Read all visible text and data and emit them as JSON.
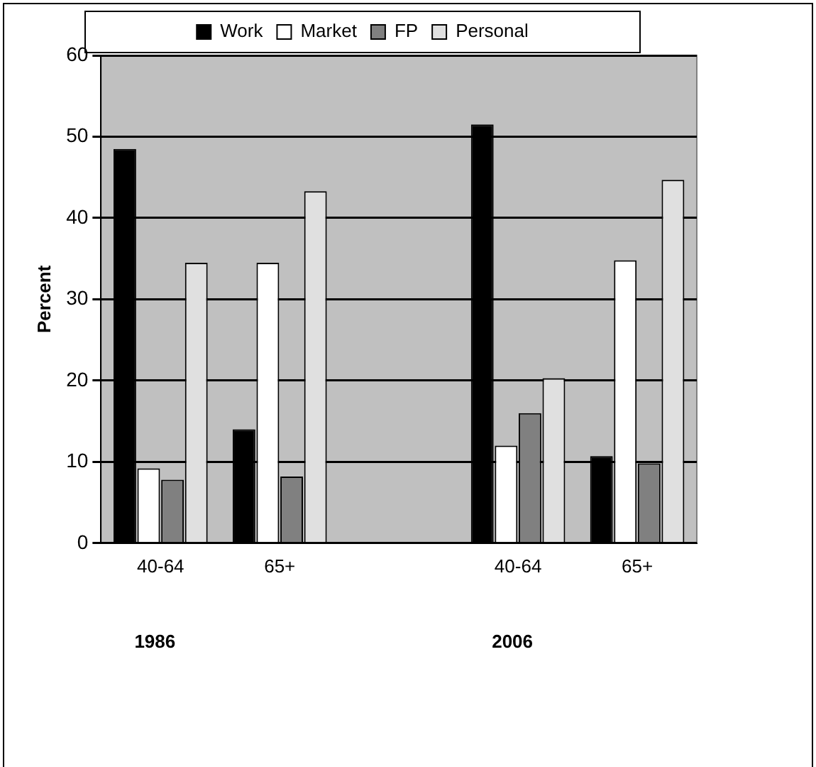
{
  "chart_data": {
    "type": "bar",
    "ylabel": "Percent",
    "categories": [
      "40-64",
      "65+",
      null,
      "40-64",
      "65+"
    ],
    "series": [
      {
        "name": "Work",
        "color": "#000000",
        "values": [
          48.5,
          14,
          null,
          51.5,
          10.7
        ]
      },
      {
        "name": "Market",
        "color": "#ffffff",
        "values": [
          9.2,
          34.5,
          null,
          12,
          34.8
        ]
      },
      {
        "name": "FP",
        "color": "#808080",
        "values": [
          7.8,
          8.2,
          null,
          16,
          9.8
        ]
      },
      {
        "name": "Personal",
        "color": "#e0e0e0",
        "values": [
          34.5,
          43.3,
          null,
          20.3,
          44.7
        ]
      }
    ],
    "ylim": [
      0,
      60
    ],
    "yticks": [
      0,
      10,
      20,
      30,
      40,
      50,
      60
    ],
    "grid": "y",
    "legend": "top",
    "annotations": [
      "1986",
      "2006"
    ]
  }
}
